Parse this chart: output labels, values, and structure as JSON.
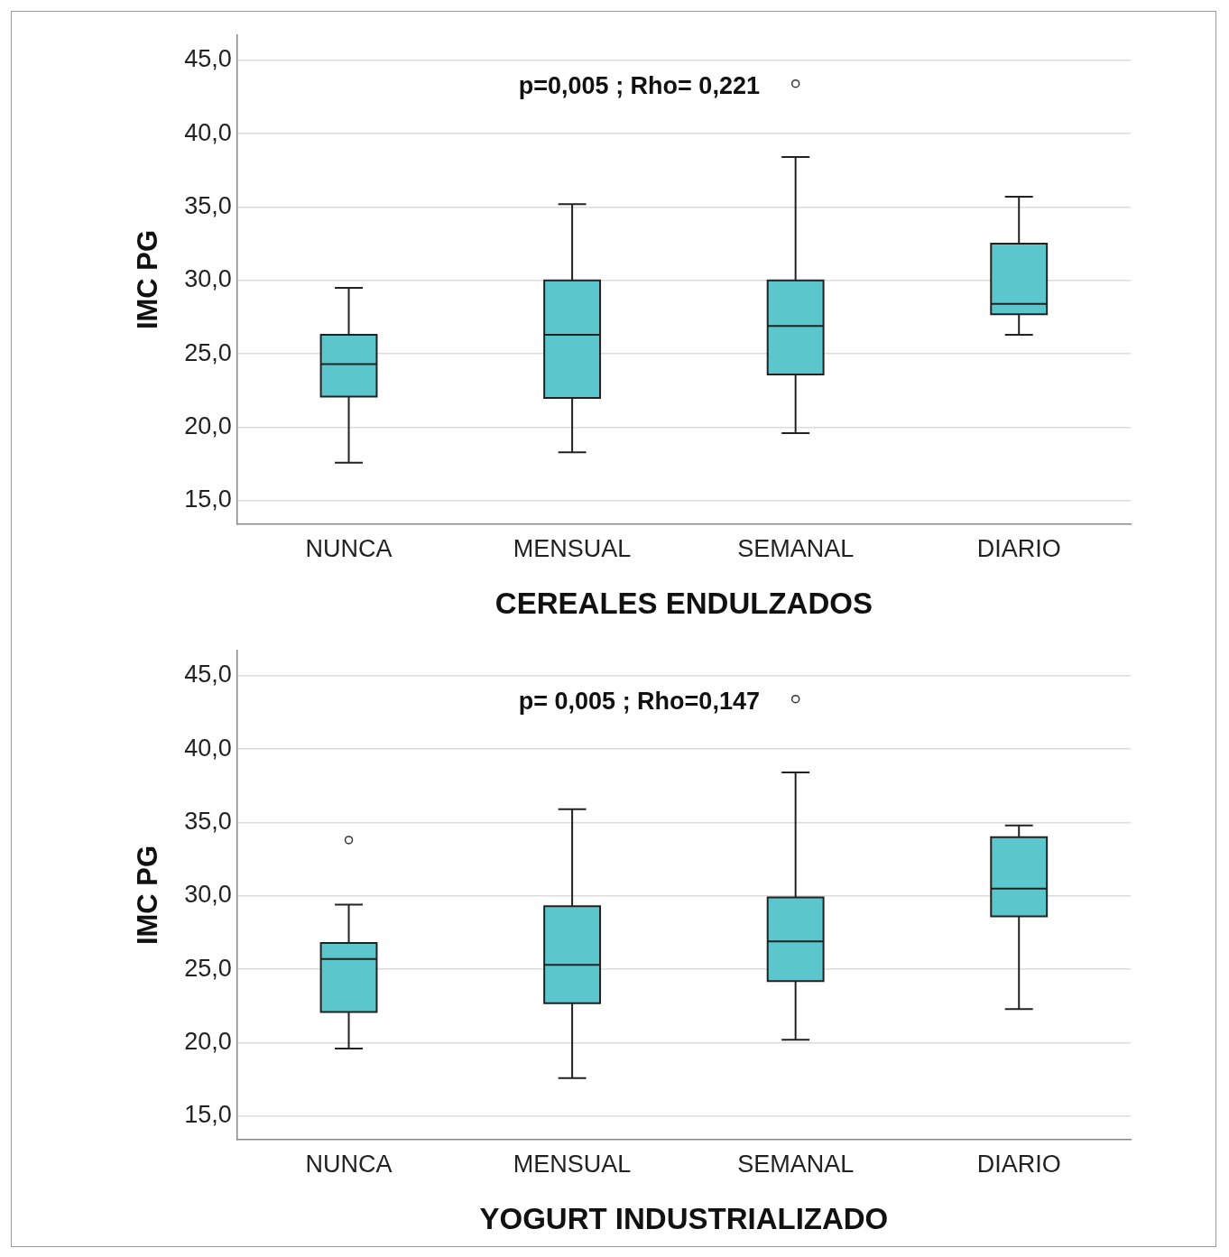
{
  "chart_data": [
    {
      "type": "box",
      "xlabel": "CEREALES ENDULZADOS",
      "ylabel": "IMC PG",
      "categories": [
        "NUNCA",
        "MENSUAL",
        "SEMANAL",
        "DIARIO"
      ],
      "color": "#5bc6cc",
      "grid": "y",
      "legend": false,
      "ylim": [
        13.4,
        46.7
      ],
      "yticks": [
        {
          "value": 15,
          "label": "15,0"
        },
        {
          "value": 20,
          "label": "20,0"
        },
        {
          "value": 25,
          "label": "25,0"
        },
        {
          "value": 30,
          "label": "30,0"
        },
        {
          "value": 35,
          "label": "35,0"
        },
        {
          "value": 40,
          "label": "40,0"
        },
        {
          "value": 45,
          "label": "45,0"
        }
      ],
      "annotations": [
        "p=0,005 ; Rho= 0,221"
      ],
      "boxes": [
        {
          "low": 17.6,
          "q1": 22.1,
          "median": 24.3,
          "q3": 26.3,
          "high": 29.5
        },
        {
          "low": 18.3,
          "q1": 22.0,
          "median": 26.3,
          "q3": 30.0,
          "high": 35.2
        },
        {
          "low": 19.6,
          "q1": 23.6,
          "median": 26.9,
          "q3": 30.0,
          "high": 38.4,
          "outliers": [
            43.4
          ]
        },
        {
          "low": 26.3,
          "q1": 27.7,
          "median": 28.4,
          "q3": 32.5,
          "high": 35.7
        }
      ]
    },
    {
      "type": "box",
      "xlabel": "YOGURT INDUSTRIALIZADO",
      "ylabel": "IMC PG",
      "categories": [
        "NUNCA",
        "MENSUAL",
        "SEMANAL",
        "DIARIO"
      ],
      "color": "#5bc6cc",
      "grid": "y",
      "legend": false,
      "ylim": [
        13.4,
        46.7
      ],
      "yticks": [
        {
          "value": 15,
          "label": "15,0"
        },
        {
          "value": 20,
          "label": "20,0"
        },
        {
          "value": 25,
          "label": "25,0"
        },
        {
          "value": 30,
          "label": "30,0"
        },
        {
          "value": 35,
          "label": "35,0"
        },
        {
          "value": 40,
          "label": "40,0"
        },
        {
          "value": 45,
          "label": "45,0"
        }
      ],
      "annotations": [
        "p= 0,005 ; Rho=0,147"
      ],
      "boxes": [
        {
          "low": 19.6,
          "q1": 22.1,
          "median": 25.7,
          "q3": 26.8,
          "high": 29.4,
          "outliers": [
            33.8
          ]
        },
        {
          "low": 17.6,
          "q1": 22.7,
          "median": 25.3,
          "q3": 29.3,
          "high": 35.9
        },
        {
          "low": 20.2,
          "q1": 24.2,
          "median": 26.9,
          "q3": 29.9,
          "high": 38.4,
          "outliers": [
            43.4
          ]
        },
        {
          "low": 22.3,
          "q1": 28.6,
          "median": 30.5,
          "q3": 34.0,
          "high": 34.8
        }
      ]
    }
  ]
}
